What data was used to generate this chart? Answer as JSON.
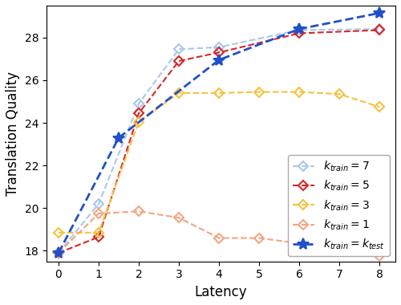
{
  "title": "",
  "xlabel": "Latency",
  "ylabel": "Translation Quality",
  "xlim": [
    -0.3,
    8.4
  ],
  "ylim": [
    17.5,
    29.5
  ],
  "xticks": [
    0,
    1,
    2,
    3,
    4,
    5,
    6,
    7,
    8
  ],
  "yticks": [
    18,
    20,
    22,
    24,
    26,
    28
  ],
  "series": {
    "k7": {
      "x": [
        0,
        1,
        2,
        3,
        4,
        6,
        8
      ],
      "y": [
        17.9,
        20.2,
        24.9,
        27.45,
        27.55,
        28.35,
        28.4
      ],
      "color": "#aac8e8",
      "label": "$k_{train} = 7$",
      "marker": "D",
      "markersize": 6,
      "linestyle": "--",
      "linewidth": 1.5
    },
    "k5": {
      "x": [
        0,
        1,
        2,
        3,
        4,
        6,
        8
      ],
      "y": [
        17.9,
        18.65,
        24.45,
        26.9,
        27.3,
        28.2,
        28.35
      ],
      "color": "#d62728",
      "label": "$k_{train} = 5$",
      "marker": "D",
      "markersize": 6,
      "linestyle": "--",
      "linewidth": 1.5
    },
    "k3": {
      "x": [
        0,
        1,
        2,
        3,
        4,
        5,
        6,
        7,
        8
      ],
      "y": [
        18.85,
        18.85,
        24.05,
        25.4,
        25.4,
        25.45,
        25.45,
        25.35,
        24.75
      ],
      "color": "#f5c242",
      "label": "$k_{train} = 3$",
      "marker": "D",
      "markersize": 6,
      "linestyle": "--",
      "linewidth": 1.5
    },
    "k1": {
      "x": [
        0,
        1,
        2,
        3,
        4,
        5,
        6,
        7,
        8
      ],
      "y": [
        17.9,
        19.75,
        19.85,
        19.55,
        18.6,
        18.6,
        18.35,
        18.1,
        17.75
      ],
      "color": "#f4a582",
      "label": "$k_{train} = 1$",
      "marker": "D",
      "markersize": 6,
      "linestyle": "--",
      "linewidth": 1.5
    },
    "ktest": {
      "x": [
        0,
        1.5,
        4,
        6,
        8
      ],
      "y": [
        17.9,
        23.3,
        26.95,
        28.4,
        29.15
      ],
      "color": "#2050cc",
      "label": "$k_{train} = k_{test}$",
      "marker": "*",
      "markersize": 10,
      "linestyle": "--",
      "linewidth": 2.0
    }
  },
  "legend_loc": "lower right",
  "legend_fontsize": 10
}
